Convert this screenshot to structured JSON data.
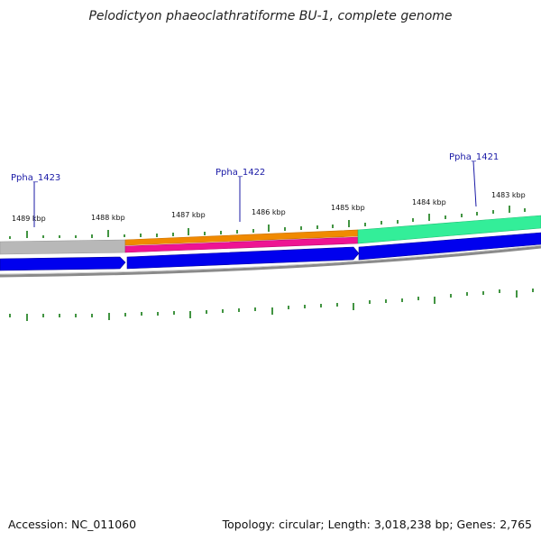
{
  "title": "Pelodictyon phaeoclathratiforme BU-1, complete genome",
  "footer": {
    "accession": "Accession: NC_011060",
    "info": "Topology: circular; Length: 3,018,238 bp; Genes: 2,765"
  },
  "ticks": [
    "1489 kbp",
    "1488 kbp",
    "1487 kbp",
    "1486 kbp",
    "1485 kbp",
    "1484 kbp",
    "1483 kbp"
  ],
  "genes": [
    "Ppha_1423",
    "Ppha_1422",
    "Ppha_1421"
  ],
  "colors": {
    "backbone": "#8a8a8a",
    "cds": "#0000ee",
    "gene_grey": "#b8b8b8",
    "gene_orange": "#f08a00",
    "gene_pink": "#ee1493",
    "gene_green": "#33ee99",
    "gc_ticks": "#127a12",
    "label_color": "#1a1aa6"
  }
}
